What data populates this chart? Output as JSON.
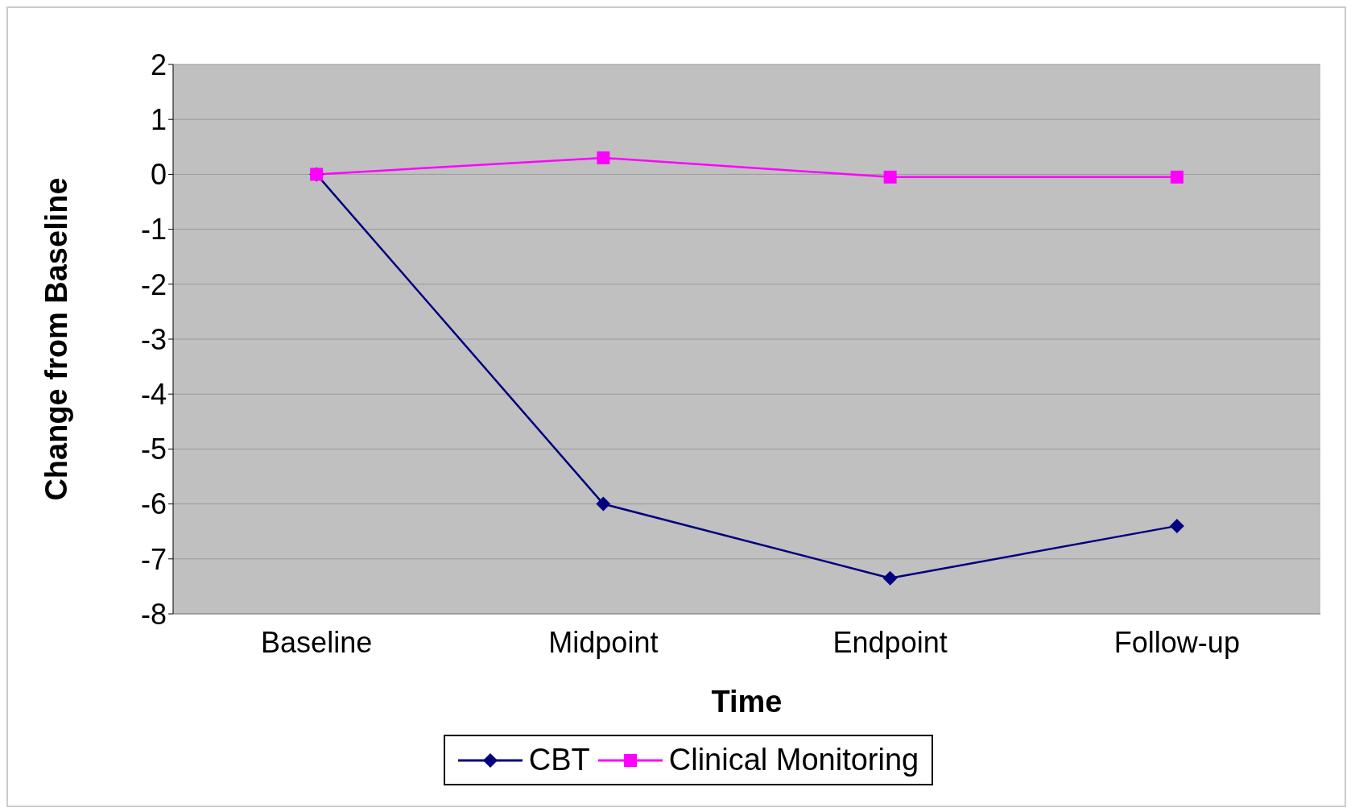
{
  "chart_data": {
    "type": "line",
    "xlabel": "Time",
    "ylabel": "Change from Baseline",
    "categories": [
      "Baseline",
      "Midpoint",
      "Endpoint",
      "Follow-up"
    ],
    "series": [
      {
        "name": "CBT",
        "color": "#000080",
        "marker": "diamond",
        "values": [
          0,
          -6.0,
          -7.35,
          -6.4
        ]
      },
      {
        "name": "Clinical Monitoring",
        "color": "#ff00ff",
        "marker": "square",
        "values": [
          0,
          0.3,
          -0.05,
          -0.05
        ]
      }
    ],
    "ylim": [
      -8,
      2
    ],
    "yticks": [
      -8,
      -7,
      -6,
      -5,
      -4,
      -3,
      -2,
      -1,
      0,
      1,
      2
    ],
    "grid": "y",
    "legend": "bottom",
    "line_style": "solid"
  }
}
